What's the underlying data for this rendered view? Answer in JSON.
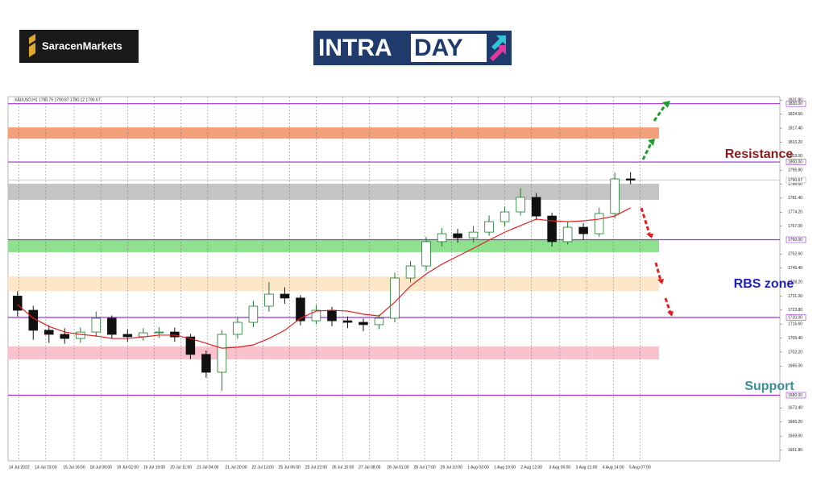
{
  "brand": "SaracenMarkets",
  "banner": {
    "left": "INTRA",
    "right": "DAY"
  },
  "chart_data": {
    "type": "candlestick",
    "title": "XAUUSD,H1 1790.79 1790.87 1790.12 1790.67",
    "up_color": "#1b7a2a",
    "down_color": "#111111",
    "open": [
      1731.0,
      1723.7,
      1713.4,
      1711.3,
      1709.2,
      1712.5,
      1719.6,
      1711.3,
      1710.1,
      1712.1,
      1712.5,
      1710.0,
      1701.0,
      1691.8,
      1711.3,
      1717.5,
      1725.8,
      1732.0,
      1730.0,
      1718.3,
      1723.7,
      1718.3,
      1717.5,
      1716.3,
      1719.6,
      1740.3,
      1746.5,
      1759.0,
      1763.1,
      1761.0,
      1763.9,
      1769.3,
      1774.3,
      1781.8,
      1772.2,
      1759.0,
      1766.4,
      1763.1,
      1773.5,
      1791.3
    ],
    "high": [
      1733.5,
      1726.0,
      1716.0,
      1714.5,
      1714.8,
      1723.0,
      1721.0,
      1714.0,
      1714.5,
      1715.0,
      1714.8,
      1711.5,
      1703.0,
      1713.5,
      1720.0,
      1728.5,
      1738.2,
      1735.5,
      1731.5,
      1726.5,
      1725.5,
      1720.5,
      1719.5,
      1721.5,
      1743.0,
      1749.0,
      1761.5,
      1766.0,
      1765.5,
      1767.0,
      1772.5,
      1777.0,
      1786.5,
      1784.0,
      1774.0,
      1769.5,
      1768.5,
      1776.5,
      1794.5,
      1794.8
    ],
    "low": [
      1720.5,
      1708.5,
      1707.0,
      1706.5,
      1707.0,
      1710.0,
      1709.0,
      1707.5,
      1708.0,
      1709.5,
      1707.5,
      1698.5,
      1689.0,
      1682.3,
      1709.0,
      1715.0,
      1723.0,
      1727.0,
      1716.0,
      1716.5,
      1715.5,
      1714.5,
      1713.0,
      1714.0,
      1717.5,
      1738.0,
      1744.0,
      1756.5,
      1758.5,
      1758.5,
      1762.0,
      1767.0,
      1772.5,
      1770.0,
      1756.5,
      1757.5,
      1760.0,
      1761.5,
      1771.0,
      1788.5
    ],
    "close": [
      1723.7,
      1713.4,
      1711.3,
      1709.2,
      1712.5,
      1719.6,
      1711.3,
      1710.1,
      1712.1,
      1712.5,
      1710.0,
      1701.0,
      1691.8,
      1711.3,
      1717.5,
      1725.8,
      1732.0,
      1730.0,
      1718.3,
      1723.7,
      1718.3,
      1717.5,
      1716.3,
      1719.6,
      1740.3,
      1746.5,
      1759.0,
      1763.1,
      1761.0,
      1763.9,
      1769.3,
      1774.3,
      1781.8,
      1772.2,
      1759.0,
      1766.4,
      1763.1,
      1773.5,
      1791.3,
      1790.67
    ],
    "ma": {
      "color": "#e02020",
      "values": [
        1726.6,
        1719.6,
        1715.4,
        1712.5,
        1711.3,
        1710.5,
        1709.2,
        1709.2,
        1710.0,
        1710.9,
        1710.9,
        1709.2,
        1706.7,
        1704.2,
        1704.7,
        1705.9,
        1709.2,
        1713.4,
        1719.6,
        1723.3,
        1723.7,
        1723.3,
        1721.7,
        1720.8,
        1727.9,
        1736.2,
        1742.4,
        1747.4,
        1751.5,
        1755.6,
        1759.8,
        1763.9,
        1767.3,
        1770.6,
        1769.7,
        1769.3,
        1769.7,
        1770.6,
        1772.2,
        1776.4
      ]
    },
    "xlim": [
      0,
      49
    ],
    "xticks": [
      {
        "value": 0.6,
        "label": "14 Jul 2022"
      },
      {
        "value": 2.3,
        "label": "14 Jul 23:00"
      },
      {
        "value": 4.1,
        "label": "15 Jul 16:00"
      },
      {
        "value": 5.8,
        "label": "18 Jul 09:00"
      },
      {
        "value": 7.5,
        "label": "19 Jul 02:00"
      },
      {
        "value": 9.2,
        "label": "19 Jul 19:00"
      },
      {
        "value": 10.9,
        "label": "20 Jul 11:00"
      },
      {
        "value": 12.6,
        "label": "21 Jul 04:00"
      },
      {
        "value": 14.4,
        "label": "21 Jul 20:00"
      },
      {
        "value": 16.1,
        "label": "22 Jul 13:00"
      },
      {
        "value": 17.8,
        "label": "25 Jul 06:00"
      },
      {
        "value": 19.5,
        "label": "25 Jul 22:00"
      },
      {
        "value": 21.2,
        "label": "26 Jul 15:00"
      },
      {
        "value": 22.9,
        "label": "27 Jul 08:00"
      },
      {
        "value": 24.7,
        "label": "28 Jul 01:00"
      },
      {
        "value": 26.4,
        "label": "28 Jul 17:00"
      },
      {
        "value": 28.1,
        "label": "29 Jul 10:00"
      },
      {
        "value": 29.8,
        "label": "1 Aug 03:00"
      },
      {
        "value": 31.5,
        "label": "1 Aug 19:00"
      },
      {
        "value": 33.2,
        "label": "2 Aug 12:00"
      },
      {
        "value": 35.0,
        "label": "3 Aug 05:00"
      },
      {
        "value": 36.7,
        "label": "3 Aug 21:00"
      },
      {
        "value": 38.4,
        "label": "4 Aug 14:00"
      },
      {
        "value": 40.1,
        "label": "5 Aug 07:00"
      }
    ],
    "ylim": [
      1646.2,
      1833.6
    ],
    "yticks": [
      {
        "value": 1831.8,
        "label": "1831.80"
      },
      {
        "value": 1824.6,
        "label": "1824.60"
      },
      {
        "value": 1817.4,
        "label": "1817.40"
      },
      {
        "value": 1810.2,
        "label": "1810.20"
      },
      {
        "value": 1803.0,
        "label": "1803.00"
      },
      {
        "value": 1795.8,
        "label": "1795.80"
      },
      {
        "value": 1788.6,
        "label": "1788.60"
      },
      {
        "value": 1781.4,
        "label": "1781.40"
      },
      {
        "value": 1774.2,
        "label": "1774.20"
      },
      {
        "value": 1767.0,
        "label": "1767.00"
      },
      {
        "value": 1752.6,
        "label": "1752.60"
      },
      {
        "value": 1745.4,
        "label": "1745.40"
      },
      {
        "value": 1738.2,
        "label": "1738.20"
      },
      {
        "value": 1731.0,
        "label": "1731.00"
      },
      {
        "value": 1723.8,
        "label": "1723.80"
      },
      {
        "value": 1716.6,
        "label": "1716.60"
      },
      {
        "value": 1709.4,
        "label": "1709.40"
      },
      {
        "value": 1702.2,
        "label": "1702.20"
      },
      {
        "value": 1695.0,
        "label": "1695.00"
      },
      {
        "value": 1673.4,
        "label": "1673.40"
      },
      {
        "value": 1666.2,
        "label": "1666.20"
      },
      {
        "value": 1659.0,
        "label": "1659.00"
      },
      {
        "value": 1651.8,
        "label": "1651.80"
      }
    ],
    "zones": [
      {
        "from": 1812.0,
        "to": 1817.8,
        "color": "#f4a07a"
      },
      {
        "from": 1780.5,
        "to": 1788.8,
        "color": "#c4c4c4"
      },
      {
        "from": 1753.6,
        "to": 1760.0,
        "color": "#8fe08f"
      },
      {
        "from": 1733.6,
        "to": 1741.1,
        "color": "#fde6c8"
      },
      {
        "from": 1698.4,
        "to": 1705.1,
        "color": "#f9c2cc"
      }
    ],
    "levels": [
      {
        "value": 1830.0,
        "label": "1830.00",
        "color": "#9b30d9"
      },
      {
        "value": 1800.0,
        "label": "1800.00",
        "color": "#9b30d9"
      },
      {
        "value": 1790.67,
        "label": "1790.67",
        "color": "#b0b0b0"
      },
      {
        "value": 1760.0,
        "label": "1760.00",
        "color": "#9b30d9"
      },
      {
        "value": 1720.0,
        "label": "1720.00",
        "color": "#9b30d9"
      },
      {
        "value": 1680.0,
        "label": "1680.00",
        "color": "#9b30d9"
      }
    ],
    "annotations": [
      {
        "text": "Resistance",
        "color": "#8b1a1a"
      },
      {
        "text": "RBS zone",
        "color": "#1c1cc8"
      },
      {
        "text": "Support",
        "color": "#3a8f96"
      }
    ]
  }
}
